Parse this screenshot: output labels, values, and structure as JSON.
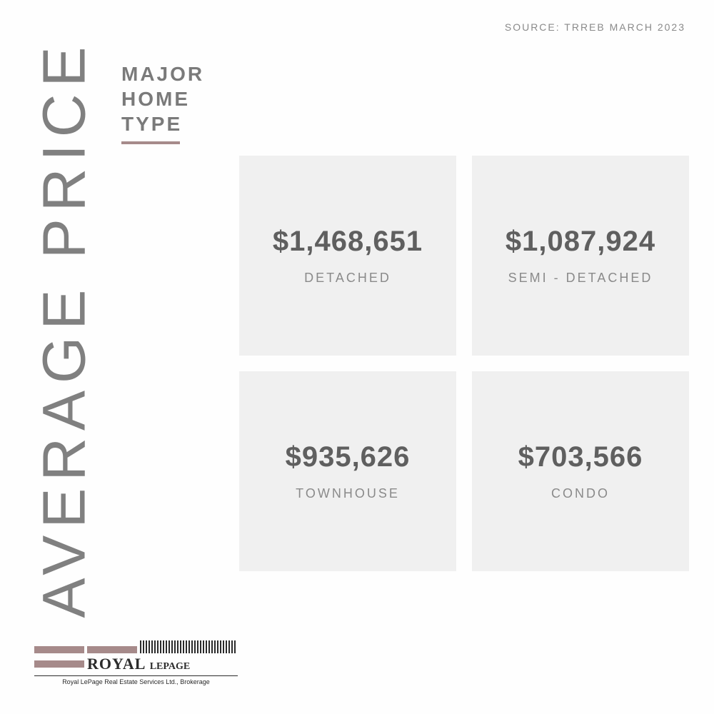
{
  "type": "infographic",
  "background_color": "#fefefe",
  "source_line": "SOURCE:  TRREB MARCH 2023",
  "source_color": "#8a8a8a",
  "source_fontsize": 14,
  "vertical_title": "AVERAGE PRICE",
  "vertical_title_color": "#808080",
  "vertical_title_fontsize": 84,
  "subtitle_lines": [
    "MAJOR",
    "HOME",
    "TYPE"
  ],
  "subtitle_color": "#7a7a7a",
  "subtitle_fontsize": 28,
  "accent_underline_color": "#a68a8a",
  "cards": [
    {
      "price": "$1,468,651",
      "label": "DETACHED"
    },
    {
      "price": "$1,087,924",
      "label": "SEMI - DETACHED"
    },
    {
      "price": "$935,626",
      "label": "TOWNHOUSE"
    },
    {
      "price": "$703,566",
      "label": "CONDO"
    }
  ],
  "card_bg": "#f0f0f0",
  "card_price_color": "#5f5f5f",
  "card_price_fontsize": 40,
  "card_label_color": "#8a8a8a",
  "card_label_fontsize": 18,
  "logo": {
    "brand_main": "ROYAL",
    "brand_second": "LEPAGE",
    "sub": "Royal LePage Real Estate Services Ltd., Brokerage",
    "bar_color": "#a68a8a",
    "text_color": "#2b2b2b"
  }
}
